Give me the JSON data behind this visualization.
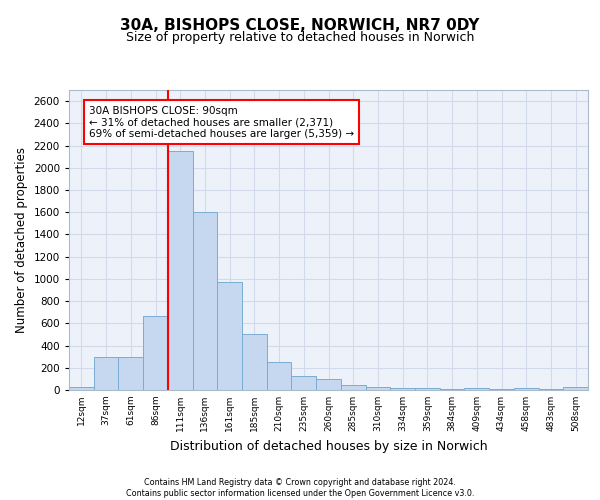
{
  "title1": "30A, BISHOPS CLOSE, NORWICH, NR7 0DY",
  "title2": "Size of property relative to detached houses in Norwich",
  "xlabel": "Distribution of detached houses by size in Norwich",
  "ylabel": "Number of detached properties",
  "bar_color": "#c5d8f0",
  "bar_edge_color": "#7aadd4",
  "categories": [
    "12sqm",
    "37sqm",
    "61sqm",
    "86sqm",
    "111sqm",
    "136sqm",
    "161sqm",
    "185sqm",
    "210sqm",
    "235sqm",
    "260sqm",
    "285sqm",
    "310sqm",
    "334sqm",
    "359sqm",
    "384sqm",
    "409sqm",
    "434sqm",
    "458sqm",
    "483sqm",
    "508sqm"
  ],
  "values": [
    25,
    300,
    300,
    670,
    2150,
    1600,
    970,
    500,
    250,
    130,
    100,
    45,
    30,
    20,
    20,
    10,
    15,
    5,
    15,
    5,
    25
  ],
  "red_line_x": 3.5,
  "annotation_text": "30A BISHOPS CLOSE: 90sqm\n← 31% of detached houses are smaller (2,371)\n69% of semi-detached houses are larger (5,359) →",
  "annotation_box_color": "white",
  "annotation_box_edge": "red",
  "ylim": [
    0,
    2700
  ],
  "yticks": [
    0,
    200,
    400,
    600,
    800,
    1000,
    1200,
    1400,
    1600,
    1800,
    2000,
    2200,
    2400,
    2600
  ],
  "footer1": "Contains HM Land Registry data © Crown copyright and database right 2024.",
  "footer2": "Contains public sector information licensed under the Open Government Licence v3.0.",
  "background_color": "#edf2fa",
  "grid_color": "#d0daea"
}
